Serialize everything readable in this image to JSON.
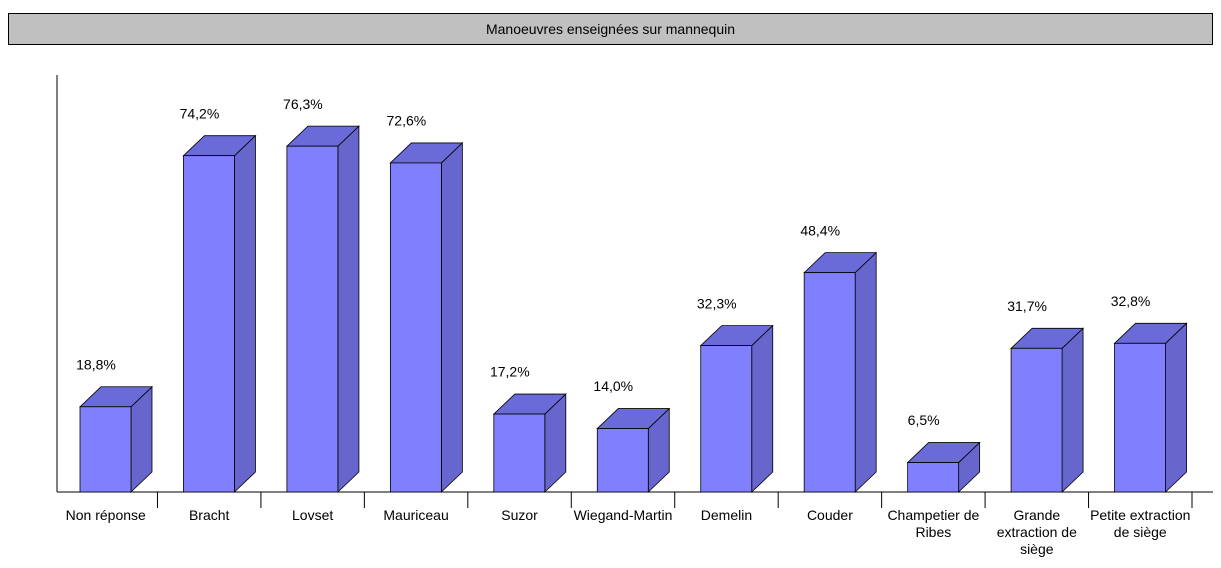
{
  "chart_data": {
    "type": "bar3d",
    "title": "Manoeuvres enseignées sur mannequin",
    "categories": [
      "Non réponse",
      "Bracht",
      "Lovset",
      "Mauriceau",
      "Suzor",
      "Wiegand-Martin",
      "Demelin",
      "Couder",
      "Champetier de Ribes",
      "Grande extraction de siège",
      "Petite extraction de siège"
    ],
    "values": [
      18.8,
      74.2,
      76.3,
      72.6,
      17.2,
      14.0,
      32.3,
      48.4,
      6.5,
      31.7,
      32.8
    ],
    "value_labels": [
      "18,8%",
      "74,2%",
      "76,3%",
      "72,6%",
      "17,2%",
      "14,0%",
      "32,3%",
      "48,4%",
      "6,5%",
      "31,7%",
      "32,8%"
    ],
    "color": "#8080ff",
    "ylim": [
      0,
      92
    ]
  }
}
